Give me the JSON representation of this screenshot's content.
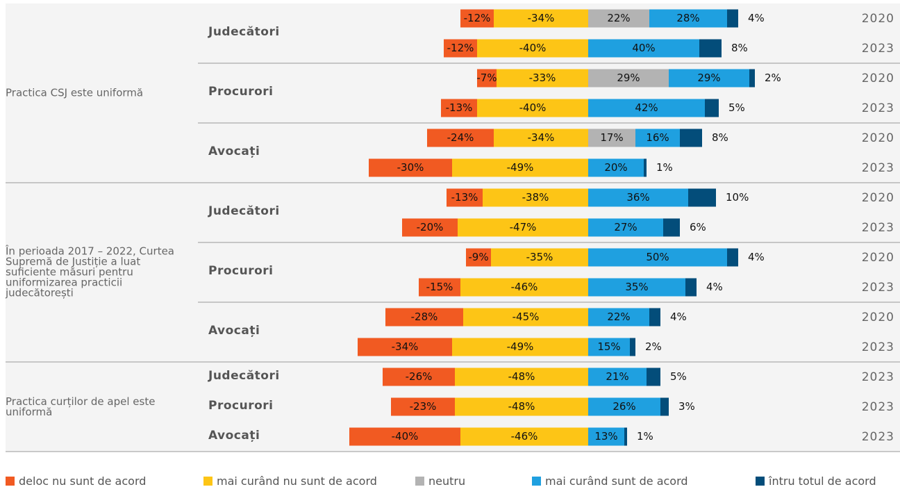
{
  "chart_data": {
    "type": "diverging-bar",
    "groups": [
      {
        "label": "Practica CSJ este uniformă",
        "subgroups": [
          {
            "label": "Judecători",
            "years": [
              "2020",
              "2023"
            ]
          },
          {
            "label": "Procurori",
            "years": [
              "2020",
              "2023"
            ]
          },
          {
            "label": "Avocați",
            "years": [
              "2020",
              "2023"
            ]
          }
        ]
      },
      {
        "label": "În perioada 2017 – 2022, Curtea Supremă de Justiție a luat suficiente măsuri pentru uniformizarea practicii judecătorești",
        "subgroups": [
          {
            "label": "Judecători",
            "years": [
              "2020",
              "2023"
            ]
          },
          {
            "label": "Procurori",
            "years": [
              "2020",
              "2023"
            ]
          },
          {
            "label": "Avocați",
            "years": [
              "2020",
              "2023"
            ]
          }
        ]
      },
      {
        "label": "Practica curților de apel este uniformă",
        "subgroups": [
          {
            "label": "Judecători",
            "years": [
              "2023"
            ]
          },
          {
            "label": "Procurori",
            "years": [
              "2023"
            ]
          },
          {
            "label": "Avocați",
            "years": [
              "2023"
            ]
          }
        ]
      }
    ],
    "series": [
      {
        "name": "deloc nu sunt de acord",
        "color": "#f15a22",
        "values": [
          -12,
          -12,
          -7,
          -13,
          -24,
          -30,
          -13,
          -20,
          -9,
          -15,
          -28,
          -34,
          -26,
          -23,
          -40
        ],
        "value_labels": [
          "-12%",
          "-12%",
          "-7%",
          "-13%",
          "-24%",
          "-30%",
          "-13%",
          "-20%",
          "-9%",
          "-15%",
          "-28%",
          "-34%",
          "-26%",
          "-23%",
          "-40%"
        ]
      },
      {
        "name": "mai curând nu sunt de acord",
        "color": "#fdc516",
        "values": [
          -34,
          -40,
          -33,
          -40,
          -34,
          -49,
          -38,
          -47,
          -35,
          -46,
          -45,
          -49,
          -48,
          -48,
          -46
        ],
        "value_labels": [
          "-34%",
          "-40%",
          "-33%",
          "-40%",
          "-34%",
          "-49%",
          "-38%",
          "-47%",
          "-35%",
          "-46%",
          "-45%",
          "-49%",
          "-48%",
          "-48%",
          "-46%"
        ]
      },
      {
        "name": "neutru",
        "color": "#b3b3b3",
        "values": [
          22,
          null,
          29,
          null,
          17,
          null,
          null,
          null,
          null,
          null,
          null,
          null,
          null,
          null,
          null
        ],
        "value_labels": [
          "22%",
          null,
          "29%",
          null,
          "17%",
          null,
          null,
          null,
          null,
          null,
          null,
          null,
          null,
          null,
          null
        ]
      },
      {
        "name": "mai curând sunt de acord",
        "color": "#1fa0e0",
        "values": [
          28,
          40,
          29,
          42,
          16,
          20,
          36,
          27,
          50,
          35,
          22,
          15,
          21,
          26,
          13
        ],
        "value_labels": [
          "28%",
          "40%",
          "29%",
          "42%",
          "16%",
          "20%",
          "36%",
          "27%",
          "50%",
          "35%",
          "22%",
          "15%",
          "21%",
          "26%",
          "13%"
        ]
      },
      {
        "name": "întru totul de acord",
        "color": "#034d7a",
        "values": [
          4,
          8,
          2,
          5,
          8,
          1,
          10,
          6,
          4,
          4,
          4,
          2,
          5,
          3,
          1
        ],
        "value_labels": [
          "4%",
          "8%",
          "2%",
          "5%",
          "8%",
          "1%",
          "10%",
          "6%",
          "4%",
          "4%",
          "4%",
          "2%",
          "5%",
          "3%",
          "1%"
        ]
      }
    ]
  }
}
